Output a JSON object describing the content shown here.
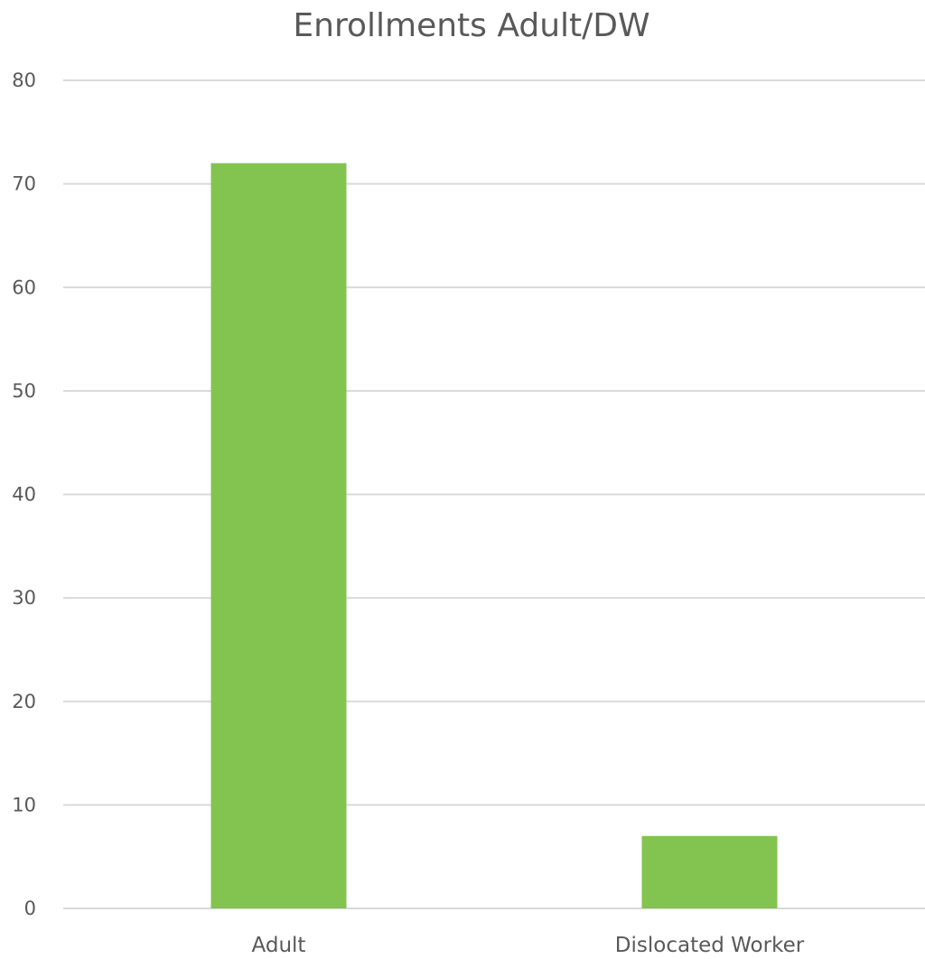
{
  "chart_data": {
    "type": "bar",
    "title": "Enrollments Adult/DW",
    "xlabel": "",
    "ylabel": "",
    "categories": [
      "Adult",
      "Dislocated Worker"
    ],
    "values": [
      72,
      7
    ],
    "ylim": [
      0,
      80
    ],
    "yticks": [
      "0",
      "10",
      "20",
      "30",
      "40",
      "50",
      "60",
      "70",
      "80"
    ],
    "grid": true,
    "legend": "none",
    "bar_color": "#83c350"
  }
}
